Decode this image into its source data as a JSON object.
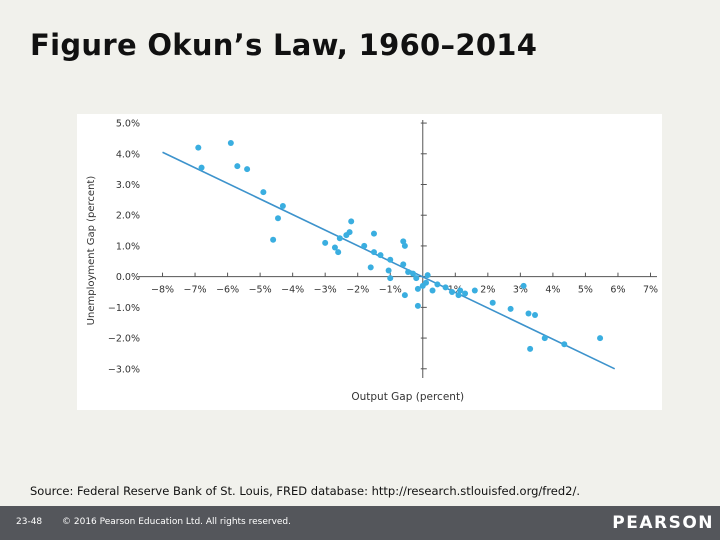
{
  "slide": {
    "title": "Figure Okun’s Law, 1960–2014",
    "source": "Source: Federal Reserve Bank of St. Louis, FRED database: http://research.stlouisfed.org/fred2/."
  },
  "footer": {
    "slide_number": "23-48",
    "copyright": "© 2016 Pearson Education Ltd. All rights reserved.",
    "brand": "PEARSON"
  },
  "colors": {
    "points": "#3aaee0",
    "fit_line": "#3d93cc",
    "axis": "#555555",
    "text": "#333333",
    "footer": "#54565b"
  },
  "chart_data": {
    "type": "scatter",
    "title": "",
    "xlabel": "Output Gap (percent)",
    "ylabel": "Unemployment Gap (percent)",
    "xlim": [
      -8.6,
      7.2
    ],
    "ylim": [
      -3.3,
      5.1
    ],
    "x_ticks": [
      -8,
      -7,
      -6,
      -5,
      -4,
      -3,
      -2,
      -1,
      1,
      2,
      3,
      4,
      5,
      6,
      7
    ],
    "x_tick_labels": [
      "−8%",
      "−7%",
      "−6%",
      "−5%",
      "−4%",
      "−3%",
      "−2%",
      "−1%",
      "1%",
      "2%",
      "3%",
      "4%",
      "5%",
      "6%",
      "7%"
    ],
    "y_ticks": [
      5,
      4,
      3,
      2,
      1,
      0,
      -1,
      -2,
      -3
    ],
    "y_tick_labels": [
      "5.0%",
      "4.0%",
      "3.0%",
      "2.0%",
      "1.0%",
      "0.0%",
      "−1.0%",
      "−2.0%",
      "−3.0%"
    ],
    "grid": false,
    "fit_line": {
      "x": [
        -8.0,
        5.9
      ],
      "y": [
        4.05,
        -3.0
      ]
    },
    "points": [
      {
        "x": -6.9,
        "y": 4.2
      },
      {
        "x": -6.8,
        "y": 3.55
      },
      {
        "x": -5.9,
        "y": 4.35
      },
      {
        "x": -5.7,
        "y": 3.6
      },
      {
        "x": -5.4,
        "y": 3.5
      },
      {
        "x": -4.9,
        "y": 2.75
      },
      {
        "x": -4.3,
        "y": 2.3
      },
      {
        "x": -4.45,
        "y": 1.9
      },
      {
        "x": -4.6,
        "y": 1.2
      },
      {
        "x": -3.0,
        "y": 1.1
      },
      {
        "x": -2.7,
        "y": 0.95
      },
      {
        "x": -2.6,
        "y": 0.8
      },
      {
        "x": -2.55,
        "y": 1.25
      },
      {
        "x": -2.35,
        "y": 1.35
      },
      {
        "x": -2.25,
        "y": 1.45
      },
      {
        "x": -2.2,
        "y": 1.8
      },
      {
        "x": -1.8,
        "y": 1.0
      },
      {
        "x": -1.6,
        "y": 0.3
      },
      {
        "x": -1.5,
        "y": 0.8
      },
      {
        "x": -1.5,
        "y": 1.4
      },
      {
        "x": -1.3,
        "y": 0.7
      },
      {
        "x": -1.0,
        "y": 0.55
      },
      {
        "x": -1.05,
        "y": 0.2
      },
      {
        "x": -1.0,
        "y": -0.05
      },
      {
        "x": -0.6,
        "y": 1.15
      },
      {
        "x": -0.55,
        "y": 1.0
      },
      {
        "x": -0.6,
        "y": 0.4
      },
      {
        "x": -0.45,
        "y": 0.15
      },
      {
        "x": -0.3,
        "y": 0.1
      },
      {
        "x": -0.2,
        "y": -0.05
      },
      {
        "x": -0.55,
        "y": -0.6
      },
      {
        "x": -0.15,
        "y": -0.95
      },
      {
        "x": -0.15,
        "y": -0.4
      },
      {
        "x": 0.0,
        "y": -0.3
      },
      {
        "x": 0.1,
        "y": -0.2
      },
      {
        "x": 0.15,
        "y": 0.05
      },
      {
        "x": 0.3,
        "y": -0.45
      },
      {
        "x": 0.45,
        "y": -0.25
      },
      {
        "x": 0.7,
        "y": -0.35
      },
      {
        "x": 0.9,
        "y": -0.5
      },
      {
        "x": 1.1,
        "y": -0.6
      },
      {
        "x": 1.15,
        "y": -0.45
      },
      {
        "x": 1.3,
        "y": -0.55
      },
      {
        "x": 1.6,
        "y": -0.45
      },
      {
        "x": 2.15,
        "y": -0.85
      },
      {
        "x": 2.7,
        "y": -1.05
      },
      {
        "x": 3.1,
        "y": -0.3
      },
      {
        "x": 3.25,
        "y": -1.2
      },
      {
        "x": 3.45,
        "y": -1.25
      },
      {
        "x": 3.3,
        "y": -2.35
      },
      {
        "x": 3.75,
        "y": -2.0
      },
      {
        "x": 4.35,
        "y": -2.2
      },
      {
        "x": 5.45,
        "y": -2.0
      }
    ]
  }
}
